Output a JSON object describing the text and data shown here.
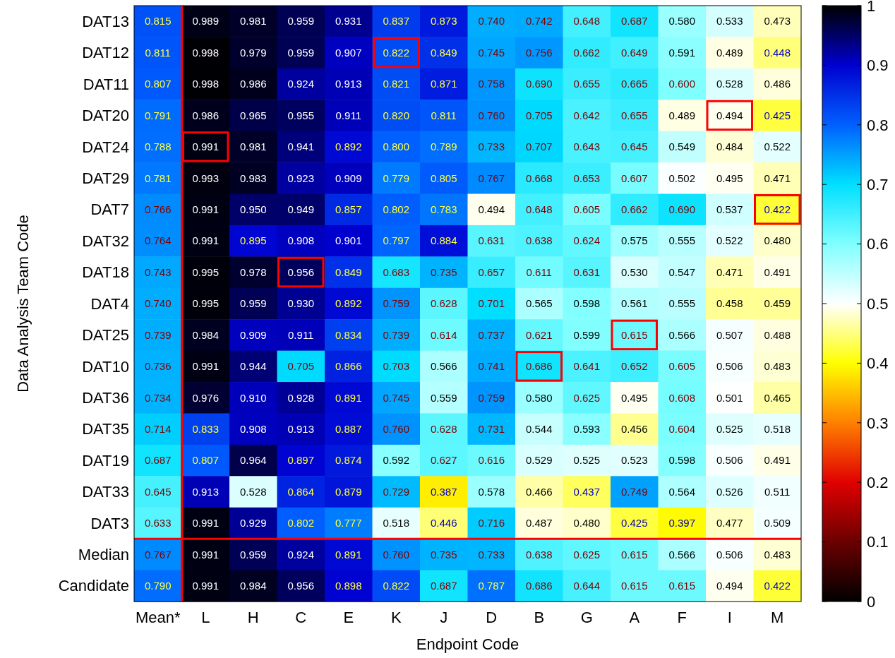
{
  "chart_data": {
    "type": "heatmap",
    "xlabel": "Endpoint Code",
    "ylabel": "Data Analysis Team Code",
    "categories": [
      "Mean*",
      "L",
      "H",
      "C",
      "E",
      "K",
      "J",
      "D",
      "B",
      "G",
      "A",
      "F",
      "I",
      "M"
    ],
    "y_categories": [
      "DAT13",
      "DAT12",
      "DAT11",
      "DAT20",
      "DAT24",
      "DAT29",
      "DAT7",
      "DAT32",
      "DAT18",
      "DAT4",
      "DAT25",
      "DAT10",
      "DAT36",
      "DAT35",
      "DAT19",
      "DAT33",
      "DAT3",
      "Median",
      "Candidate"
    ],
    "cells": [
      [
        0.815,
        0.989,
        0.981,
        0.959,
        0.931,
        0.837,
        0.873,
        0.74,
        0.742,
        0.648,
        0.687,
        0.58,
        0.533,
        0.473
      ],
      [
        0.811,
        0.998,
        0.979,
        0.959,
        0.907,
        0.822,
        0.849,
        0.745,
        0.756,
        0.662,
        0.649,
        0.591,
        0.489,
        0.448
      ],
      [
        0.807,
        0.998,
        0.986,
        0.924,
        0.913,
        0.821,
        0.871,
        0.758,
        0.69,
        0.655,
        0.665,
        0.6,
        0.528,
        0.486
      ],
      [
        0.791,
        0.986,
        0.965,
        0.955,
        0.911,
        0.82,
        0.811,
        0.76,
        0.705,
        0.642,
        0.655,
        0.489,
        0.494,
        0.425
      ],
      [
        0.788,
        0.991,
        0.981,
        0.941,
        0.892,
        0.8,
        0.789,
        0.733,
        0.707,
        0.643,
        0.645,
        0.549,
        0.484,
        0.522
      ],
      [
        0.781,
        0.993,
        0.983,
        0.923,
        0.909,
        0.779,
        0.805,
        0.767,
        0.668,
        0.653,
        0.607,
        0.502,
        0.495,
        0.471
      ],
      [
        0.766,
        0.991,
        0.95,
        0.949,
        0.857,
        0.802,
        0.783,
        0.494,
        0.648,
        0.605,
        0.662,
        0.69,
        0.537,
        0.422
      ],
      [
        0.764,
        0.991,
        0.895,
        0.908,
        0.901,
        0.797,
        0.884,
        0.631,
        0.638,
        0.624,
        0.575,
        0.555,
        0.522,
        0.48
      ],
      [
        0.743,
        0.995,
        0.978,
        0.956,
        0.849,
        0.683,
        0.735,
        0.657,
        0.611,
        0.631,
        0.53,
        0.547,
        0.471,
        0.491
      ],
      [
        0.74,
        0.995,
        0.959,
        0.93,
        0.892,
        0.759,
        0.628,
        0.701,
        0.565,
        0.598,
        0.561,
        0.555,
        0.458,
        0.459
      ],
      [
        0.739,
        0.984,
        0.909,
        0.911,
        0.834,
        0.739,
        0.614,
        0.737,
        0.621,
        0.599,
        0.615,
        0.566,
        0.507,
        0.488
      ],
      [
        0.736,
        0.991,
        0.944,
        0.705,
        0.866,
        0.703,
        0.566,
        0.741,
        0.686,
        0.641,
        0.652,
        0.605,
        0.506,
        0.483
      ],
      [
        0.734,
        0.976,
        0.91,
        0.928,
        0.891,
        0.745,
        0.559,
        0.759,
        0.58,
        0.625,
        0.495,
        0.608,
        0.501,
        0.465
      ],
      [
        0.714,
        0.833,
        0.908,
        0.913,
        0.887,
        0.76,
        0.628,
        0.731,
        0.544,
        0.593,
        0.456,
        0.604,
        0.525,
        0.518
      ],
      [
        0.687,
        0.807,
        0.964,
        0.897,
        0.874,
        0.592,
        0.627,
        0.616,
        0.529,
        0.525,
        0.523,
        0.598,
        0.506,
        0.491
      ],
      [
        0.645,
        0.913,
        0.528,
        0.864,
        0.879,
        0.729,
        0.387,
        0.578,
        0.466,
        0.437,
        0.749,
        0.564,
        0.526,
        0.511
      ],
      [
        0.633,
        0.991,
        0.929,
        0.802,
        0.777,
        0.518,
        0.446,
        0.716,
        0.487,
        0.48,
        0.425,
        0.397,
        0.477,
        0.509
      ],
      [
        0.767,
        0.991,
        0.959,
        0.924,
        0.891,
        0.76,
        0.735,
        0.733,
        0.638,
        0.625,
        0.615,
        0.566,
        0.506,
        0.483
      ],
      [
        0.79,
        0.991,
        0.984,
        0.956,
        0.898,
        0.822,
        0.687,
        0.787,
        0.686,
        0.644,
        0.615,
        0.615,
        0.494,
        0.422
      ]
    ],
    "cell_labels": [
      [
        "0.815",
        "0.989",
        "0.981",
        "0.959",
        "0.931",
        "0.837",
        "0.873",
        "0.740",
        "0.742",
        "0.648",
        "0.687",
        "0.580",
        "0.533",
        "0.473"
      ],
      [
        "0.811",
        "0.998",
        "0.979",
        "0.959",
        "0.907",
        "0.822",
        "0.849",
        "0.745",
        "0.756",
        "0.662",
        "0.649",
        "0.591",
        "0.489",
        "0.448"
      ],
      [
        "0.807",
        "0.998",
        "0.986",
        "0.924",
        "0.913",
        "0.821",
        "0.871",
        "0.758",
        "0.690",
        "0.655",
        "0.665",
        "0.600",
        "0.528",
        "0.486"
      ],
      [
        "0.791",
        "0.986",
        "0.965",
        "0.955",
        "0.911",
        "0.820",
        "0.811",
        "0.760",
        "0.705",
        "0.642",
        "0.655",
        "0.489",
        "0.494",
        "0.425"
      ],
      [
        "0.788",
        "0.991",
        "0.981",
        "0.941",
        "0.892",
        "0.800",
        "0.789",
        "0.733",
        "0.707",
        "0.643",
        "0.645",
        "0.549",
        "0.484",
        "0.522"
      ],
      [
        "0.781",
        "0.993",
        "0.983",
        "0.923",
        "0.909",
        "0.779",
        "0.805",
        "0.767",
        "0.668",
        "0.653",
        "0.607",
        "0.502",
        "0.495",
        "0.471"
      ],
      [
        "0.766",
        "0.991",
        "0.950",
        "0.949",
        "0.857",
        "0.802",
        "0.783",
        "0.494",
        "0.648",
        "0.605",
        "0.662",
        "0.690",
        "0.537",
        "0.422"
      ],
      [
        "0.764",
        "0.991",
        "0.895",
        "0.908",
        "0.901",
        "0.797",
        "0.884",
        "0.631",
        "0.638",
        "0.624",
        "0.575",
        "0.555",
        "0.522",
        "0.480"
      ],
      [
        "0.743",
        "0.995",
        "0.978",
        "0.956",
        "0.849",
        "0.683",
        "0.735",
        "0.657",
        "0.611",
        "0.631",
        "0.530",
        "0.547",
        "0.471",
        "0.491"
      ],
      [
        "0.740",
        "0.995",
        "0.959",
        "0.930",
        "0.892",
        "0.759",
        "0.628",
        "0.701",
        "0.565",
        "0.598",
        "0.561",
        "0.555",
        "0.458",
        "0.459"
      ],
      [
        "0.739",
        "0.984",
        "0.909",
        "0.911",
        "0.834",
        "0.739",
        "0.614",
        "0.737",
        "0.621",
        "0.599",
        "0.615",
        "0.566",
        "0.507",
        "0.488"
      ],
      [
        "0.736",
        "0.991",
        "0.944",
        "0.705",
        "0.866",
        "0.703",
        "0.566",
        "0.741",
        "0.686",
        "0.641",
        "0.652",
        "0.605",
        "0.506",
        "0.483"
      ],
      [
        "0.734",
        "0.976",
        "0.910",
        "0.928",
        "0.891",
        "0.745",
        "0.559",
        "0.759",
        "0.580",
        "0.625",
        "0.495",
        "0.608",
        "0.501",
        "0.465"
      ],
      [
        "0.714",
        "0.833",
        "0.908",
        "0.913",
        "0.887",
        "0.760",
        "0.628",
        "0.731",
        "0.544",
        "0.593",
        "0.456",
        "0.604",
        "0.525",
        "0.518"
      ],
      [
        "0.687",
        "0.807",
        "0.964",
        "0.897",
        "0.874",
        "0.592",
        "0.627",
        "0.616",
        "0.529",
        "0.525",
        "0.523",
        "0.598",
        "0.506",
        "0.491"
      ],
      [
        "0.645",
        "0.913",
        "0.528",
        "0.864",
        "0.879",
        "0.729",
        "0.387",
        "0.578",
        "0.466",
        "0.437",
        "0.749",
        "0.564",
        "0.526",
        "0.511"
      ],
      [
        "0.633",
        "0.991",
        "0.929",
        "0.802",
        "0.777",
        "0.518",
        "0.446",
        "0.716",
        "0.487",
        "0.480",
        "0.425",
        "0.397",
        "0.477",
        "0.509"
      ],
      [
        "0.767",
        "0.991",
        "0.959",
        "0.924",
        "0.891",
        "0.760",
        "0.735",
        "0.733",
        "0.638",
        "0.625",
        "0.615",
        "0.566",
        "0.506",
        "0.483"
      ],
      [
        "0.790",
        "0.991",
        "0.984",
        "0.956",
        "0.898",
        "0.822",
        "0.687",
        "0.787",
        "0.686",
        "0.644",
        "0.615",
        "0.615",
        "0.494",
        "0.422"
      ]
    ],
    "clim": [
      0,
      1
    ],
    "cticks": [
      0,
      0.1,
      0.2,
      0.3,
      0.4,
      0.5,
      0.6,
      0.7,
      0.8,
      0.9,
      1
    ],
    "data_labels": true
  }
}
